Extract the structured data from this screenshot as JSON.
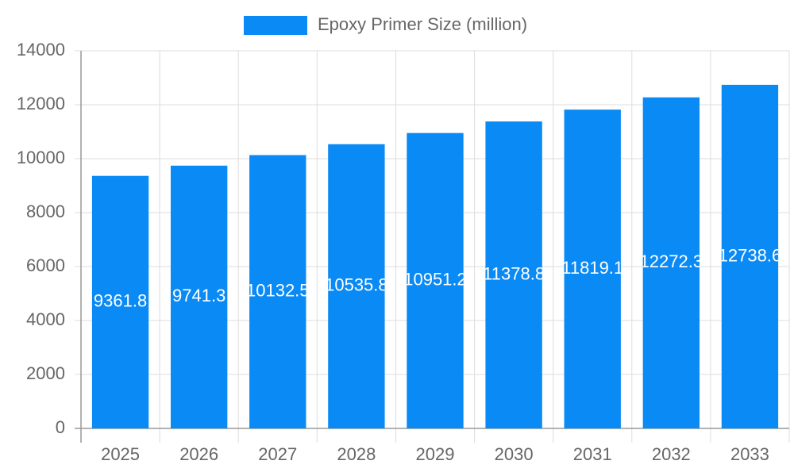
{
  "chart_data": {
    "type": "bar",
    "legend": "Epoxy Primer Size (million)",
    "categories": [
      "2025",
      "2026",
      "2027",
      "2028",
      "2029",
      "2030",
      "2031",
      "2032",
      "2033"
    ],
    "values": [
      9361.8,
      9741.3,
      10132.5,
      10535.8,
      10951.2,
      11378.8,
      11819.1,
      12272.3,
      12738.6
    ],
    "color": "#0a8af5",
    "ylim": [
      0,
      14000
    ],
    "yticks": [
      0,
      2000,
      4000,
      6000,
      8000,
      10000,
      12000,
      14000
    ],
    "grid": true
  }
}
